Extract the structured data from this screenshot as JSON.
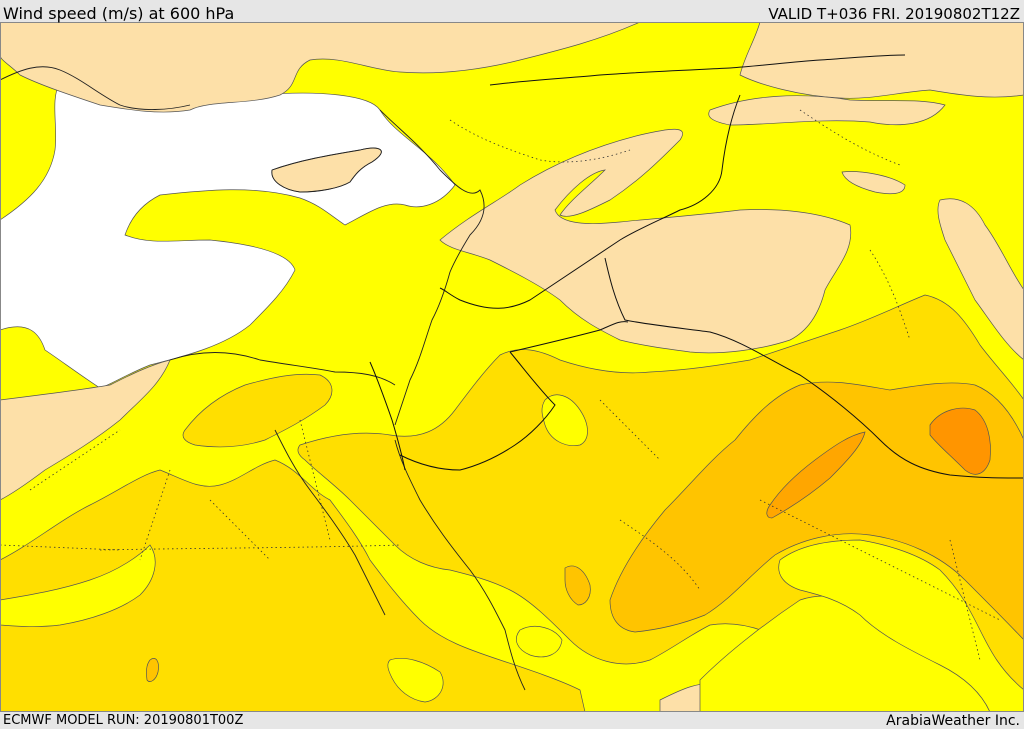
{
  "header": {
    "title": "Wind speed (m/s) at 600 hPa",
    "valid": "VALID T+036 FRI. 20190802T12Z"
  },
  "footer": {
    "model_run": "ECMWF MODEL RUN: 20190801T00Z",
    "credit": "ArabiaWeather Inc."
  },
  "colors": {
    "sea_calm": "#ffffff",
    "very_light": "#fde0a8",
    "light": "#ffff00",
    "moderate": "#ffdf00",
    "fresh": "#ffc400",
    "strong": "#ffa600",
    "very_strong": "#ff9500"
  }
}
